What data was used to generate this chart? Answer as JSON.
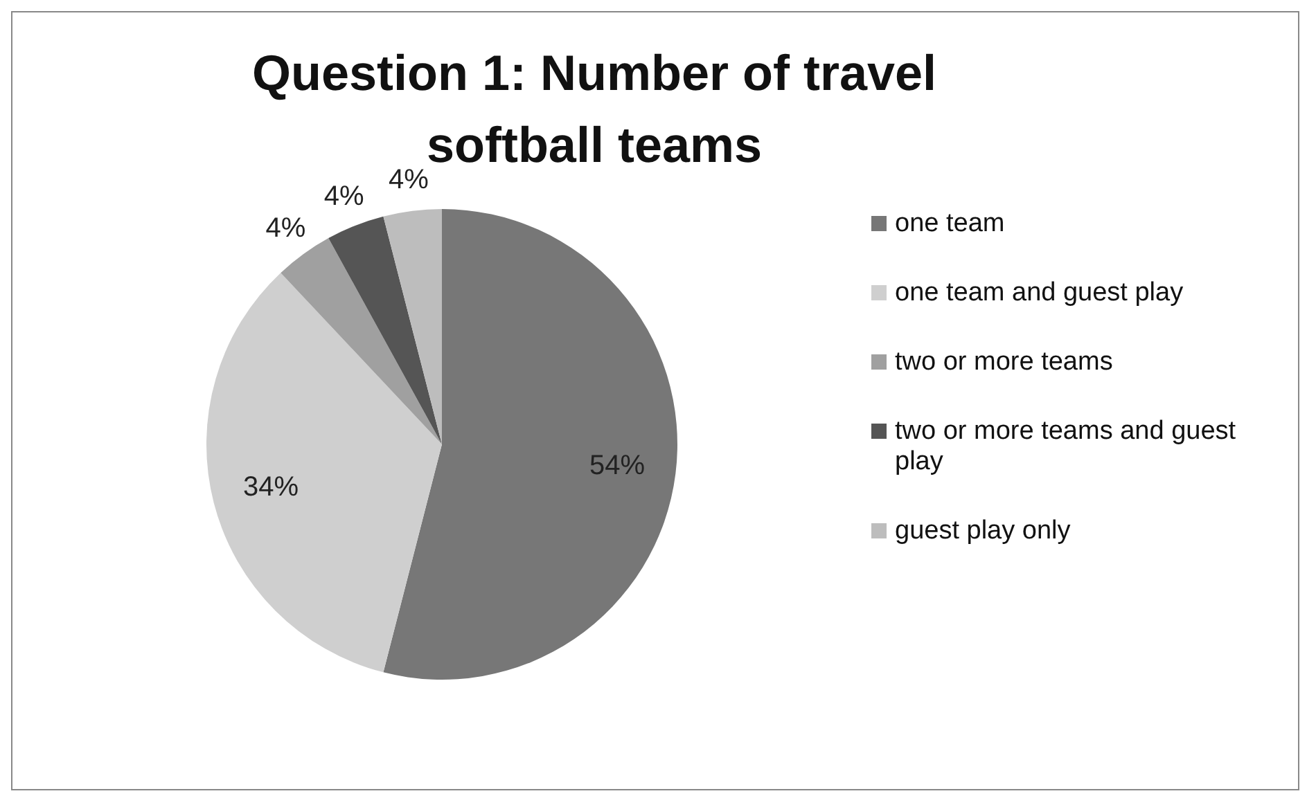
{
  "chart_data": {
    "type": "pie",
    "title": "Question 1: Number of travel softball teams",
    "categories": [
      "one team",
      "one team and guest play",
      "two or more teams",
      "two or more teams and guest play",
      "guest play only"
    ],
    "values": [
      54,
      34,
      4,
      4,
      4
    ],
    "value_labels": [
      "54%",
      "34%",
      "4%",
      "4%",
      "4%"
    ],
    "colors": [
      "#777777",
      "#cfcfcf",
      "#a0a0a0",
      "#555555",
      "#bdbdbd"
    ],
    "legend": "right"
  }
}
